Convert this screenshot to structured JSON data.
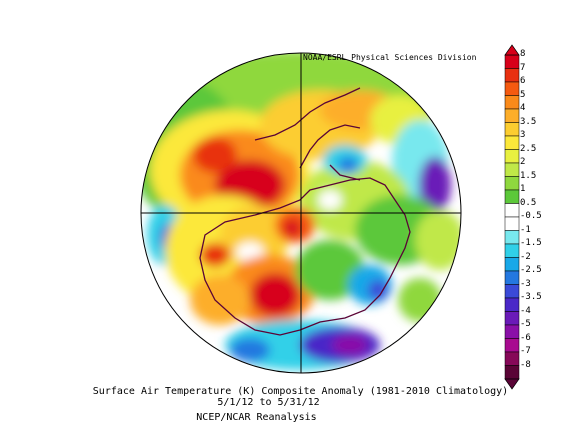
{
  "credit": "NOAA/ESRL Physical Sciences Division",
  "caption": {
    "title": "Surface Air Temperature (K) Composite Anomaly (1981-2010 Climatology)",
    "dates": "5/1/12  to 5/31/12",
    "source": "NCEP/NCAR Reanalysis"
  },
  "colorbar": {
    "labels": [
      "8",
      "7",
      "6",
      "5",
      "4",
      "3.5",
      "3",
      "2.5",
      "2",
      "1.5",
      "1",
      "0.5",
      "-0.5",
      "-1",
      "-1.5",
      "-2",
      "-2.5",
      "-3",
      "-3.5",
      "-4",
      "-5",
      "-6",
      "-7",
      "-8"
    ],
    "colors": [
      "#d7001a",
      "#e83010",
      "#f55a10",
      "#fa8a1a",
      "#fdae2a",
      "#fccd30",
      "#fce83a",
      "#e8f040",
      "#c0e848",
      "#8fd83e",
      "#5cc83a",
      "#ffffff",
      "#ffffff",
      "#78e8ee",
      "#30d0e8",
      "#18a8e8",
      "#2478e0",
      "#3a4ad8",
      "#4a28c8",
      "#6a1ab8",
      "#8a10a8",
      "#a80a90",
      "#860858",
      "#5a0436"
    ]
  }
}
